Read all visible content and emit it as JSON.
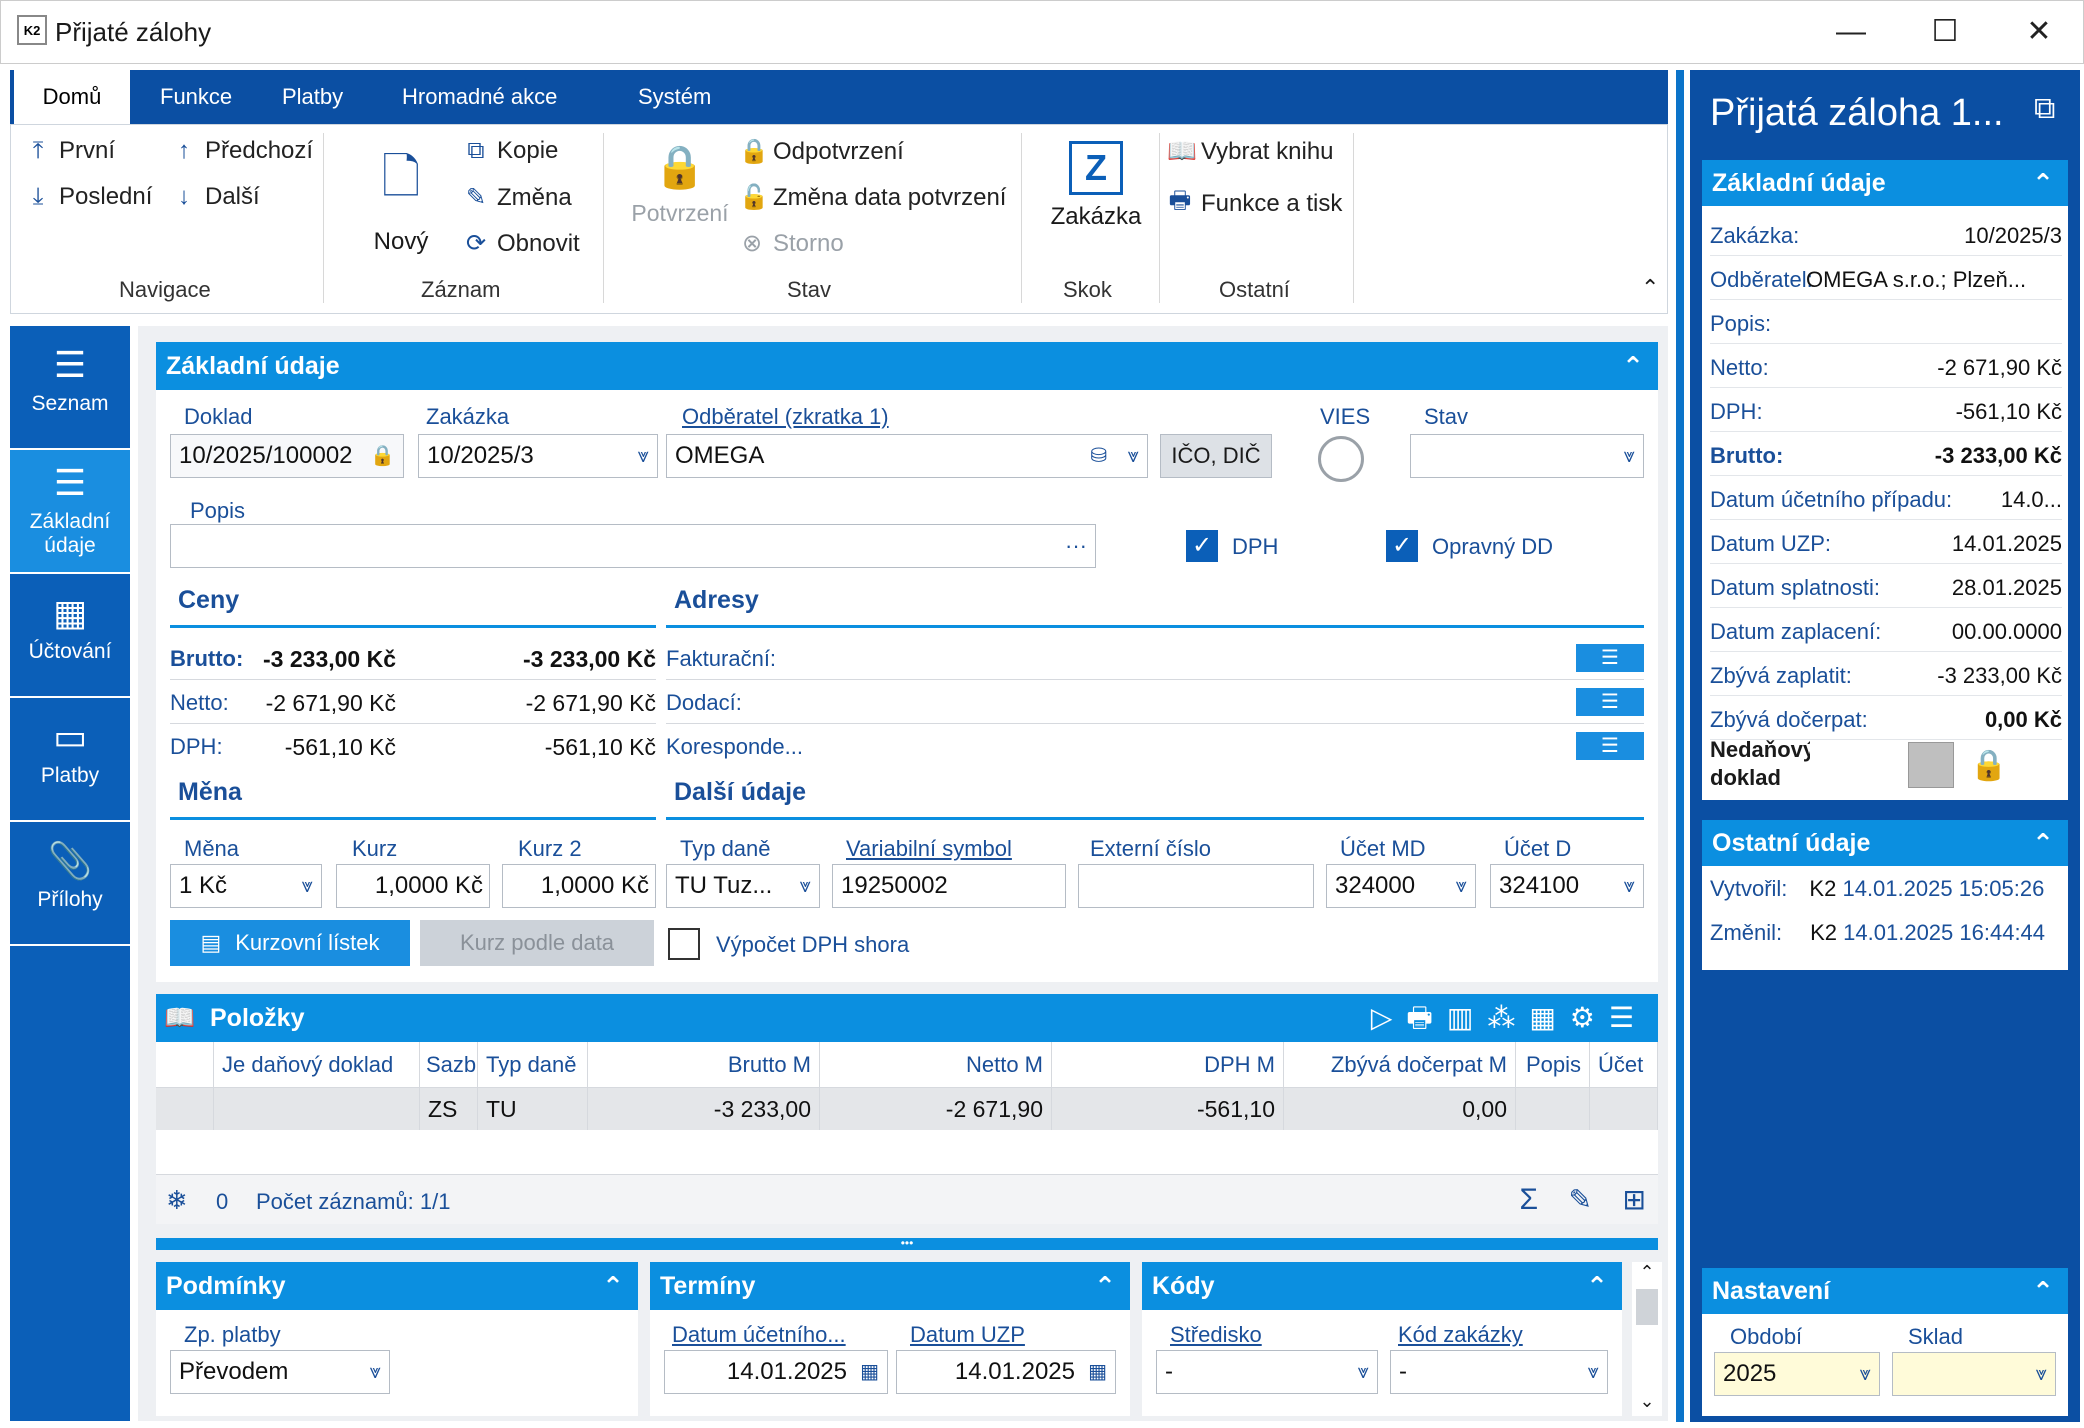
{
  "window": {
    "title": "Přijaté zálohy",
    "minimize": "—",
    "maximize": "☐",
    "close": "✕"
  },
  "ribbon": {
    "tabs": [
      "Domů",
      "Funkce",
      "Platby",
      "Hromadné akce",
      "Systém"
    ],
    "nav": {
      "first": "První",
      "last": "Poslední",
      "prev": "Předchozí",
      "next": "Další",
      "group": "Navigace"
    },
    "record": {
      "new": "Nový",
      "copy": "Kopie",
      "change": "Změna",
      "refresh": "Obnovit",
      "group": "Záznam"
    },
    "state": {
      "confirm": "Potvrzení",
      "unconfirm": "Odpotvrzení",
      "change_date": "Změna data potvrzení",
      "storno": "Storno",
      "group": "Stav"
    },
    "jump": {
      "order": "Zakázka",
      "group": "Skok"
    },
    "other": {
      "book": "Vybrat knihu",
      "print": "Funkce a tisk",
      "group": "Ostatní"
    }
  },
  "leftnav": [
    "Seznam",
    "Základní údaje",
    "Účtování",
    "Platby",
    "Přílohy"
  ],
  "basic": {
    "header": "Základní údaje",
    "doklad_label": "Doklad",
    "doklad": "10/2025/100002",
    "zakazka_label": "Zakázka",
    "zakazka": "10/2025/3",
    "odberatel_label": "Odběratel (zkratka 1)",
    "odberatel": "OMEGA",
    "ico_button": "IČO, DIČ",
    "vies_label": "VIES",
    "stav_label": "Stav",
    "stav": "",
    "popis_label": "Popis",
    "popis": "",
    "dph_label": "DPH",
    "opravny_label": "Opravný DD"
  },
  "prices": {
    "title": "Ceny",
    "rows": [
      {
        "label": "Brutto:",
        "v1": "-3 233,00 Kč",
        "v2": "-3 233,00 Kč"
      },
      {
        "label": "Netto:",
        "v1": "-2 671,90 Kč",
        "v2": "-2 671,90 Kč"
      },
      {
        "label": "DPH:",
        "v1": "-561,10 Kč",
        "v2": "-561,10 Kč"
      }
    ]
  },
  "addresses": {
    "title": "Adresy",
    "rows": [
      "Fakturační:",
      "Dodací:",
      "Koresponde..."
    ]
  },
  "currency": {
    "title": "Měna",
    "mena_label": "Měna",
    "mena": "1 Kč",
    "kurz_label": "Kurz",
    "kurz": "1,0000 Kč",
    "kurz2_label": "Kurz 2",
    "kurz2": "1,0000 Kč",
    "btn_list": "Kurzovní lístek",
    "btn_date": "Kurz podle data"
  },
  "more": {
    "title": "Další údaje",
    "typ_label": "Typ daně",
    "typ": "TU Tuz...",
    "vs_label": "Variabilní symbol",
    "vs": "19250002",
    "ext_label": "Externí číslo",
    "ext": "",
    "md_label": "Účet MD",
    "md": "324000",
    "d_label": "Účet D",
    "d": "324100",
    "calc_label": "Výpočet DPH shora"
  },
  "items": {
    "title": "Položky",
    "cols": [
      "Je daňový doklad",
      "Sazb",
      "Typ daně",
      "Brutto M",
      "Netto M",
      "DPH M",
      "Zbývá dočerpat M",
      "Popis",
      "Účet"
    ],
    "row": [
      "",
      "ZS",
      "TU",
      "-3 233,00",
      "-2 671,90",
      "-561,10",
      "0,00",
      "",
      ""
    ],
    "count_zero": "0",
    "count": "Počet záznamů: 1/1"
  },
  "conditions": {
    "title": "Podmínky",
    "label": "Zp. platby",
    "value": "Převodem"
  },
  "terms": {
    "title": "Termíny",
    "l1": "Datum účetního...",
    "v1": "14.01.2025",
    "l2": "Datum UZP",
    "v2": "14.01.2025"
  },
  "codes": {
    "title": "Kódy",
    "l1": "Středisko",
    "v1": "-",
    "l2": "Kód zakázky",
    "v2": "-"
  },
  "right": {
    "title": "Přijatá záloha 1...",
    "basic_header": "Základní údaje",
    "rows": [
      {
        "l": "Zakázka:",
        "v": "10/2025/3"
      },
      {
        "l": "Odběratel:",
        "v": "OMEGA s.r.o.; Plzeň..."
      },
      {
        "l": "Popis:",
        "v": ""
      },
      {
        "l": "Netto:",
        "v": "-2 671,90 Kč"
      },
      {
        "l": "DPH:",
        "v": "-561,10 Kč"
      },
      {
        "l": "Brutto:",
        "v": "-3 233,00 Kč"
      },
      {
        "l": "Datum účetního případu:",
        "v": "14.0..."
      },
      {
        "l": "Datum UZP:",
        "v": "14.01.2025"
      },
      {
        "l": "Datum splatnosti:",
        "v": "28.01.2025"
      },
      {
        "l": "Datum zaplacení:",
        "v": "00.00.0000"
      },
      {
        "l": "Zbývá zaplatit:",
        "v": "-3 233,00 Kč"
      },
      {
        "l": "Zbývá dočerpat:",
        "v": "0,00 Kč"
      }
    ],
    "nedanovy": "Nedaňový doklad",
    "other_header": "Ostatní údaje",
    "created_l": "Vytvořil:",
    "created_user": "K2",
    "created": "14.01.2025 15:05:26",
    "changed_l": "Změnil:",
    "changed_user": "K2",
    "changed": "14.01.2025 16:44:44",
    "settings_header": "Nastavení",
    "obdobi_l": "Období",
    "obdobi": "2025",
    "sklad_l": "Sklad",
    "sklad": ""
  },
  "colors": {
    "accent": "#0b8fe0",
    "dark": "#0b4fa3",
    "green": "#2fbf71"
  }
}
